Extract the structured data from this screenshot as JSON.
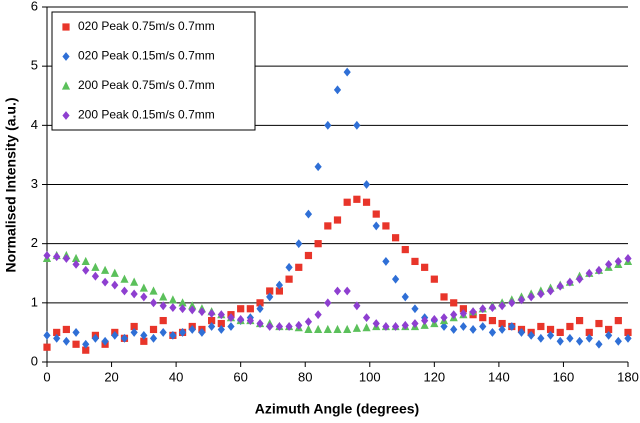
{
  "chart_data": {
    "type": "scatter",
    "x_label": "Azimuth Angle (degrees)",
    "y_label": "Normalised Intensity (a.u.)",
    "x": [
      0,
      3,
      6,
      9,
      12,
      15,
      18,
      21,
      24,
      27,
      30,
      33,
      36,
      39,
      42,
      45,
      48,
      51,
      54,
      57,
      60,
      63,
      66,
      69,
      72,
      75,
      78,
      81,
      84,
      87,
      90,
      93,
      96,
      99,
      102,
      105,
      108,
      111,
      114,
      117,
      120,
      123,
      126,
      129,
      132,
      135,
      138,
      141,
      144,
      147,
      150,
      153,
      156,
      159,
      162,
      165,
      168,
      171,
      174,
      177,
      180
    ],
    "series": [
      {
        "name": "020 Peak 0.75m/s 0.7mm",
        "color": "#e8352a",
        "marker": "square",
        "values": [
          0.25,
          0.5,
          0.55,
          0.3,
          0.2,
          0.45,
          0.3,
          0.5,
          0.4,
          0.6,
          0.35,
          0.55,
          0.7,
          0.45,
          0.5,
          0.6,
          0.55,
          0.7,
          0.65,
          0.8,
          0.9,
          0.9,
          1.0,
          1.2,
          1.2,
          1.4,
          1.6,
          1.8,
          2.0,
          2.3,
          2.4,
          2.7,
          2.75,
          2.7,
          2.5,
          2.3,
          2.1,
          1.9,
          1.7,
          1.6,
          1.4,
          1.1,
          1.0,
          0.9,
          0.8,
          0.75,
          0.7,
          0.65,
          0.6,
          0.55,
          0.5,
          0.6,
          0.55,
          0.5,
          0.6,
          0.7,
          0.5,
          0.65,
          0.55,
          0.7,
          0.5
        ]
      },
      {
        "name": "020 Peak 0.15m/s 0.7mm",
        "color": "#2f6fd6",
        "marker": "diamond",
        "values": [
          0.45,
          0.4,
          0.35,
          0.5,
          0.3,
          0.4,
          0.35,
          0.45,
          0.4,
          0.5,
          0.45,
          0.4,
          0.5,
          0.45,
          0.5,
          0.55,
          0.5,
          0.6,
          0.55,
          0.6,
          0.7,
          0.75,
          0.9,
          1.1,
          1.3,
          1.6,
          2.0,
          2.5,
          3.3,
          4.0,
          4.6,
          4.9,
          4.0,
          3.0,
          2.3,
          1.7,
          1.4,
          1.1,
          0.9,
          0.75,
          0.7,
          0.6,
          0.55,
          0.6,
          0.55,
          0.6,
          0.5,
          0.55,
          0.6,
          0.5,
          0.45,
          0.4,
          0.45,
          0.35,
          0.4,
          0.35,
          0.4,
          0.3,
          0.45,
          0.35,
          0.4
        ]
      },
      {
        "name": "200 Peak 0.75m/s 0.7mm",
        "color": "#5bc05b",
        "marker": "triangle",
        "values": [
          1.75,
          1.8,
          1.8,
          1.75,
          1.7,
          1.6,
          1.55,
          1.5,
          1.4,
          1.35,
          1.25,
          1.2,
          1.1,
          1.05,
          1.0,
          0.95,
          0.9,
          0.85,
          0.8,
          0.75,
          0.7,
          0.7,
          0.65,
          0.65,
          0.6,
          0.6,
          0.58,
          0.55,
          0.55,
          0.55,
          0.55,
          0.55,
          0.57,
          0.58,
          0.6,
          0.6,
          0.6,
          0.6,
          0.6,
          0.62,
          0.65,
          0.7,
          0.75,
          0.8,
          0.85,
          0.9,
          0.95,
          1.0,
          1.05,
          1.1,
          1.15,
          1.2,
          1.25,
          1.3,
          1.35,
          1.45,
          1.5,
          1.55,
          1.6,
          1.65,
          1.7
        ]
      },
      {
        "name": "200 Peak 0.15m/s 0.7mm",
        "color": "#8e3fd0",
        "marker": "diamond",
        "values": [
          1.8,
          1.78,
          1.75,
          1.65,
          1.55,
          1.45,
          1.35,
          1.3,
          1.2,
          1.15,
          1.1,
          1.0,
          0.95,
          0.92,
          0.9,
          0.88,
          0.85,
          0.82,
          0.8,
          0.75,
          0.72,
          0.7,
          0.65,
          0.6,
          0.6,
          0.6,
          0.62,
          0.68,
          0.8,
          1.0,
          1.2,
          1.2,
          0.95,
          0.75,
          0.65,
          0.6,
          0.6,
          0.62,
          0.65,
          0.7,
          0.72,
          0.75,
          0.8,
          0.82,
          0.85,
          0.9,
          0.92,
          0.95,
          1.0,
          1.05,
          1.1,
          1.15,
          1.2,
          1.28,
          1.35,
          1.4,
          1.5,
          1.55,
          1.65,
          1.7,
          1.75
        ]
      }
    ],
    "xlim": [
      0,
      180
    ],
    "xticks": [
      0,
      20,
      40,
      60,
      80,
      100,
      120,
      140,
      160,
      180
    ],
    "ylim": [
      0,
      6
    ],
    "yticks": [
      0,
      1,
      2,
      3,
      4,
      5,
      6
    ],
    "grid": true,
    "legend": "upper left"
  }
}
